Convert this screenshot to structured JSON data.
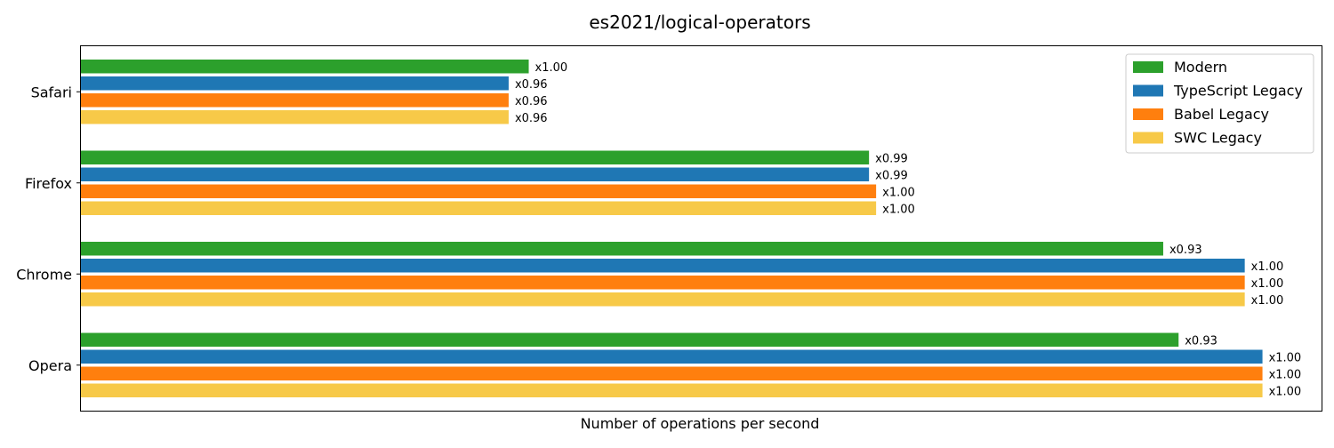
{
  "chart_data": {
    "type": "bar",
    "orientation": "horizontal",
    "title": "es2021/logical-operators",
    "xlabel": "Number of operations per second",
    "ylabel": "",
    "categories": [
      "Safari",
      "Firefox",
      "Chrome",
      "Opera"
    ],
    "series": [
      {
        "name": "Modern",
        "color": "#2ca02c",
        "values": [
          0.379,
          0.667,
          0.916,
          0.929
        ],
        "labels": [
          "x1.00",
          "x0.99",
          "x0.93",
          "x0.93"
        ]
      },
      {
        "name": "TypeScript Legacy",
        "color": "#1f77b4",
        "values": [
          0.362,
          0.667,
          0.985,
          1.0
        ],
        "labels": [
          "x0.96",
          "x0.99",
          "x1.00",
          "x1.00"
        ]
      },
      {
        "name": "Babel Legacy",
        "color": "#ff7f0e",
        "values": [
          0.362,
          0.673,
          0.985,
          1.0
        ],
        "labels": [
          "x0.96",
          "x1.00",
          "x1.00",
          "x1.00"
        ]
      },
      {
        "name": "SWC Legacy",
        "color": "#f7c948",
        "values": [
          0.362,
          0.673,
          0.985,
          1.0
        ],
        "labels": [
          "x0.96",
          "x1.00",
          "x1.00",
          "x1.00"
        ]
      }
    ],
    "xlim": [
      0,
      1.05
    ],
    "x_ticks_shown": false,
    "grid": false,
    "legend_position": "top-right"
  }
}
